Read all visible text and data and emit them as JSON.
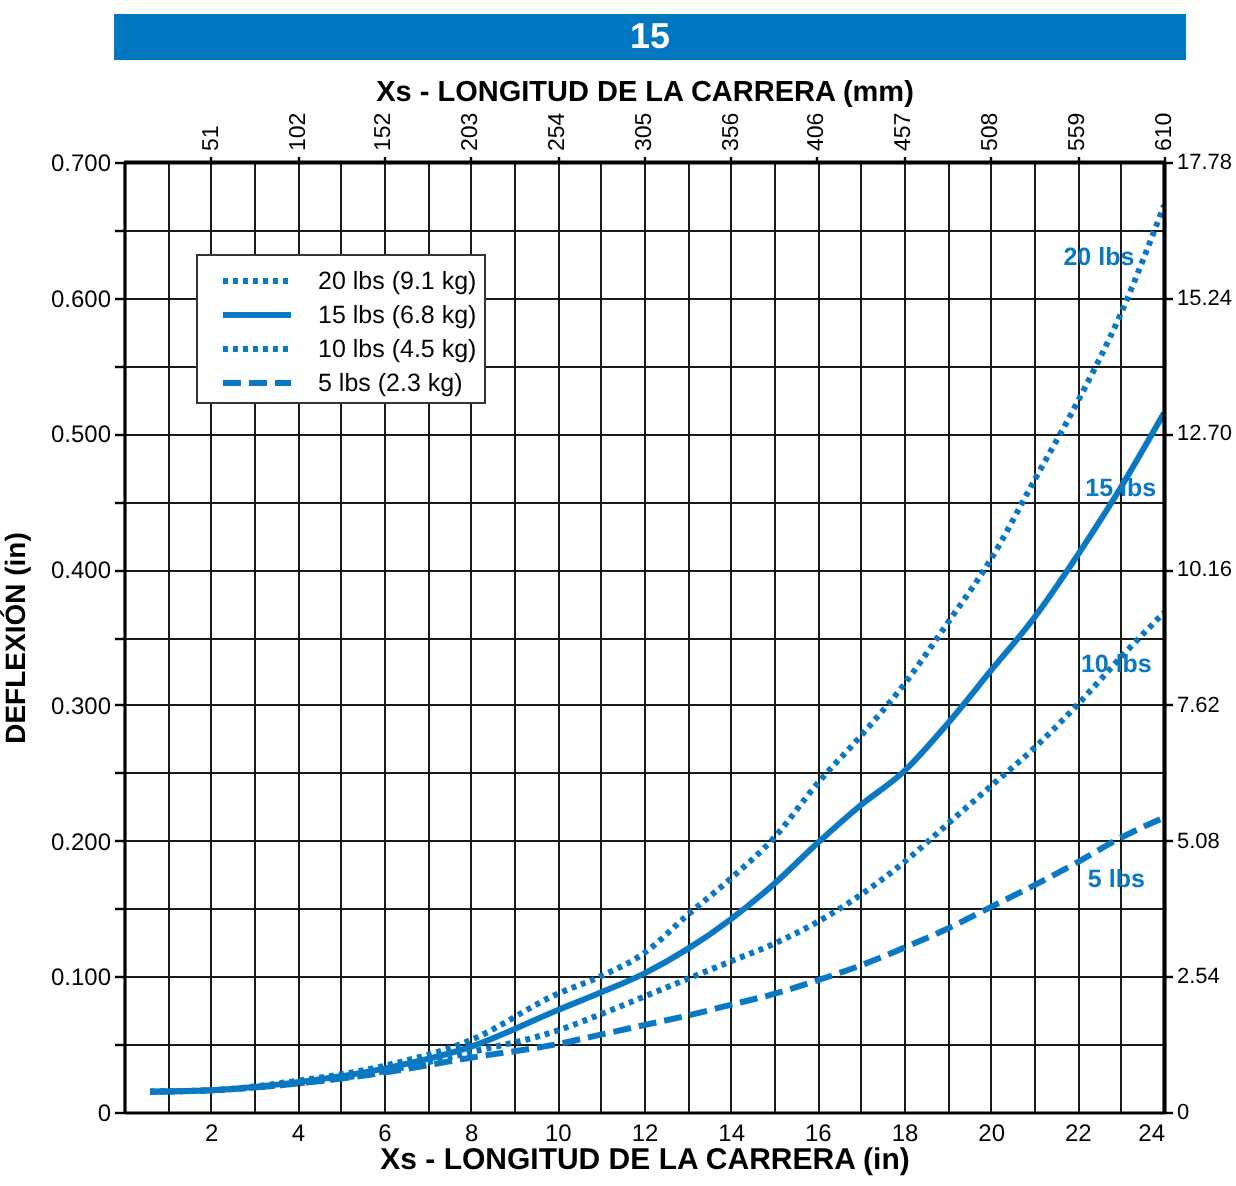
{
  "chart_data": {
    "type": "line",
    "title": "15",
    "x2label": "Xs - LONGITUD DE LA CARRERA (mm)",
    "xlabel": "Xs - LONGITUD DE LA CARRERA (in)",
    "ylabel": "DEFLEXIÓN (in)",
    "xlim": [
      0,
      24
    ],
    "xticks": [
      {
        "value": 1,
        "label": null
      },
      2,
      {
        "value": 3,
        "label": null
      },
      4,
      {
        "value": 5,
        "label": null
      },
      6,
      {
        "value": 7,
        "label": null
      },
      8,
      {
        "value": 9,
        "label": null
      },
      10,
      {
        "value": 11,
        "label": null
      },
      12,
      {
        "value": 13,
        "label": null
      },
      14,
      {
        "value": 15,
        "label": null
      },
      16,
      {
        "value": 17,
        "label": null
      },
      18,
      {
        "value": 19,
        "label": null
      },
      20,
      {
        "value": 21,
        "label": null
      },
      22,
      {
        "value": 23,
        "label": null
      },
      24
    ],
    "x2lim": [
      0,
      610
    ],
    "x2ticks": [
      51,
      102,
      152,
      203,
      254,
      305,
      356,
      406,
      457,
      508,
      559,
      610
    ],
    "ylim": [
      0,
      0.7
    ],
    "yticks": [
      0,
      {
        "value": 0.05,
        "label": null
      },
      {
        "value": 0.1,
        "label": "0.100"
      },
      {
        "value": 0.15,
        "label": null
      },
      {
        "value": 0.2,
        "label": "0.200"
      },
      {
        "value": 0.25,
        "label": null
      },
      {
        "value": 0.3,
        "label": "0.300"
      },
      {
        "value": 0.35,
        "label": null
      },
      {
        "value": 0.4,
        "label": "0.400"
      },
      {
        "value": 0.45,
        "label": null
      },
      {
        "value": 0.5,
        "label": "0.500"
      },
      {
        "value": 0.55,
        "label": null
      },
      {
        "value": 0.6,
        "label": "0.600"
      },
      {
        "value": 0.65,
        "label": null
      },
      {
        "value": 0.7,
        "label": "0.700"
      }
    ],
    "y2lim": [
      0,
      17.78
    ],
    "y2ticks": [
      0,
      2.54,
      5.08,
      7.62,
      10.16,
      {
        "value": 12.7,
        "label": "12.70"
      },
      15.24,
      17.78
    ],
    "grid": true,
    "legend": "top left",
    "x": [
      0.6,
      2,
      4,
      6,
      8,
      10,
      11,
      12,
      13,
      14,
      15,
      16,
      17,
      18,
      19,
      20,
      21,
      22,
      23,
      24
    ],
    "series": [
      {
        "name": "20 lbs (9.1 kg)",
        "color": "#0a78c2",
        "line_style": "dotted",
        "values": [
          0.015,
          0.016,
          0.023,
          0.034,
          0.053,
          0.087,
          0.1,
          0.117,
          0.145,
          0.172,
          0.202,
          0.242,
          0.277,
          0.315,
          0.36,
          0.407,
          0.465,
          0.523,
          0.588,
          0.668
        ]
      },
      {
        "name": "15 lbs (6.8 kg)",
        "color": "#0a78c2",
        "line_style": "solid",
        "values": [
          0.015,
          0.016,
          0.022,
          0.032,
          0.048,
          0.075,
          0.088,
          0.102,
          0.12,
          0.142,
          0.168,
          0.198,
          0.226,
          0.251,
          0.286,
          0.325,
          0.364,
          0.41,
          0.46,
          0.515
        ]
      },
      {
        "name": "10 lbs (4.5 kg)",
        "color": "#0a78c2",
        "line_style": "dotted",
        "values": [
          0.015,
          0.016,
          0.021,
          0.03,
          0.044,
          0.06,
          0.072,
          0.085,
          0.098,
          0.111,
          0.124,
          0.14,
          0.16,
          0.184,
          0.212,
          0.24,
          0.268,
          0.3,
          0.335,
          0.368
        ]
      },
      {
        "name": "5 lbs (2.3 kg)",
        "color": "#0a78c2",
        "line_style": "dashed",
        "values": [
          0.015,
          0.016,
          0.021,
          0.029,
          0.04,
          0.05,
          0.057,
          0.064,
          0.071,
          0.079,
          0.087,
          0.097,
          0.108,
          0.121,
          0.135,
          0.151,
          0.167,
          0.184,
          0.202,
          0.217
        ]
      }
    ],
    "annotations": [
      {
        "text": "20 lbs",
        "x": 23.5,
        "y": 0.63
      },
      {
        "text": "15 lbs",
        "x": 23,
        "y": 0.46
      },
      {
        "text": "10 lbs",
        "x": 22.9,
        "y": 0.33
      },
      {
        "text": "5 lbs",
        "x": 22.9,
        "y": 0.2
      }
    ]
  }
}
